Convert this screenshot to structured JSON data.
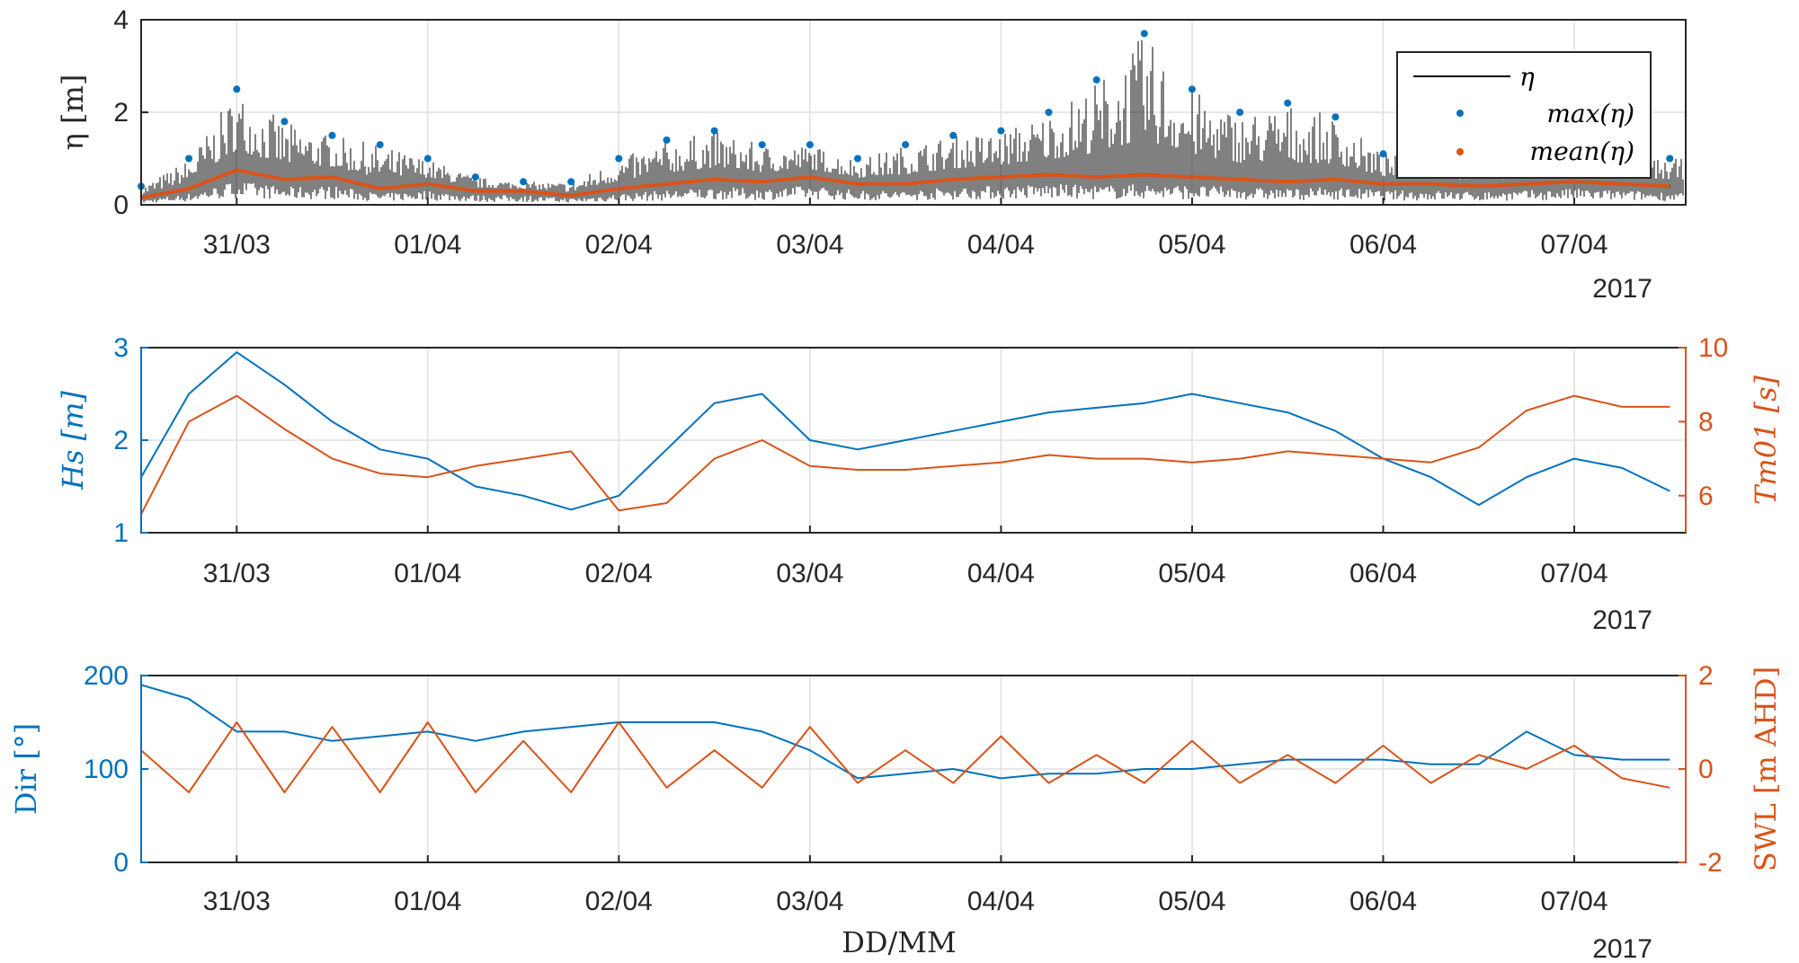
{
  "chart_data": [
    {
      "type": "line",
      "x_tick_labels": [
        "31/03",
        "01/04",
        "02/04",
        "03/04",
        "04/04",
        "05/04",
        "06/04",
        "07/04"
      ],
      "x_tick_dates": [
        "2017-03-31",
        "2017-04-01",
        "2017-04-02",
        "2017-04-03",
        "2017-04-04",
        "2017-04-05",
        "2017-04-06",
        "2017-04-07"
      ],
      "xlim": [
        "2017-03-30T12:00",
        "2017-04-07T14:00"
      ],
      "year_label": "2017",
      "ylabel": "η [m]",
      "ylim": [
        0,
        4
      ],
      "y_ticks": [
        "0",
        "2",
        "4"
      ],
      "grid": true,
      "legend_position": "top-right",
      "legend": [
        "η",
        "max(η)",
        "mean(η)"
      ],
      "colors": {
        "eta": "#000000",
        "max": "#0072BD",
        "mean": "#D95319"
      },
      "series": [
        {
          "name": "max(η)",
          "style": "points",
          "x": [
            "2017-03-30T12:00",
            "2017-03-30T18:00",
            "2017-03-31T00:00",
            "2017-03-31T06:00",
            "2017-03-31T12:00",
            "2017-03-31T18:00",
            "2017-04-01T00:00",
            "2017-04-01T06:00",
            "2017-04-01T12:00",
            "2017-04-01T18:00",
            "2017-04-02T00:00",
            "2017-04-02T06:00",
            "2017-04-02T12:00",
            "2017-04-02T18:00",
            "2017-04-03T00:00",
            "2017-04-03T06:00",
            "2017-04-03T12:00",
            "2017-04-03T18:00",
            "2017-04-04T00:00",
            "2017-04-04T06:00",
            "2017-04-04T12:00",
            "2017-04-04T18:00",
            "2017-04-05T00:00",
            "2017-04-05T06:00",
            "2017-04-05T12:00",
            "2017-04-05T18:00",
            "2017-04-06T00:00",
            "2017-04-06T06:00",
            "2017-04-06T12:00",
            "2017-04-06T18:00",
            "2017-04-07T00:00",
            "2017-04-07T06:00",
            "2017-04-07T12:00"
          ],
          "y": [
            0.4,
            1.0,
            2.5,
            1.8,
            1.5,
            1.3,
            1.0,
            0.6,
            0.5,
            0.5,
            1.0,
            1.4,
            1.6,
            1.3,
            1.3,
            1.0,
            1.3,
            1.5,
            1.6,
            2.0,
            2.7,
            3.7,
            2.5,
            2.0,
            2.2,
            1.9,
            1.1,
            1.0,
            0.9,
            1.0,
            1.0,
            1.0,
            1.0
          ]
        },
        {
          "name": "mean(η)",
          "x": [
            "2017-03-30T12:00",
            "2017-03-30T18:00",
            "2017-03-31T00:00",
            "2017-03-31T06:00",
            "2017-03-31T12:00",
            "2017-03-31T18:00",
            "2017-04-01T00:00",
            "2017-04-01T06:00",
            "2017-04-01T12:00",
            "2017-04-01T18:00",
            "2017-04-02T00:00",
            "2017-04-02T06:00",
            "2017-04-02T12:00",
            "2017-04-02T18:00",
            "2017-04-03T00:00",
            "2017-04-03T06:00",
            "2017-04-03T12:00",
            "2017-04-03T18:00",
            "2017-04-04T00:00",
            "2017-04-04T06:00",
            "2017-04-04T12:00",
            "2017-04-04T18:00",
            "2017-04-05T00:00",
            "2017-04-05T06:00",
            "2017-04-05T12:00",
            "2017-04-05T18:00",
            "2017-04-06T00:00",
            "2017-04-06T06:00",
            "2017-04-06T12:00",
            "2017-04-06T18:00",
            "2017-04-07T00:00",
            "2017-04-07T06:00",
            "2017-04-07T12:00"
          ],
          "y": [
            0.15,
            0.35,
            0.75,
            0.55,
            0.6,
            0.35,
            0.45,
            0.3,
            0.3,
            0.2,
            0.35,
            0.45,
            0.55,
            0.5,
            0.6,
            0.45,
            0.45,
            0.55,
            0.6,
            0.65,
            0.6,
            0.65,
            0.6,
            0.55,
            0.5,
            0.55,
            0.45,
            0.45,
            0.4,
            0.45,
            0.5,
            0.45,
            0.4
          ]
        }
      ]
    },
    {
      "type": "line",
      "x_tick_labels": [
        "31/03",
        "01/04",
        "02/04",
        "03/04",
        "04/04",
        "05/04",
        "06/04",
        "07/04"
      ],
      "year_label": "2017",
      "ylabel_left": "Hs [m]",
      "ylabel_right": "Tm01 [s]",
      "ylim_left": [
        1,
        3
      ],
      "ylim_right": [
        5,
        10
      ],
      "y_ticks_left": [
        "1",
        "2",
        "3"
      ],
      "y_ticks_right": [
        "6",
        "8",
        "10"
      ],
      "grid": true,
      "series": [
        {
          "name": "Hs",
          "axis": "left",
          "color": "#0072BD",
          "x": [
            "2017-03-30T12:00",
            "2017-03-30T18:00",
            "2017-03-31T00:00",
            "2017-03-31T06:00",
            "2017-03-31T12:00",
            "2017-03-31T18:00",
            "2017-04-01T00:00",
            "2017-04-01T06:00",
            "2017-04-01T12:00",
            "2017-04-01T18:00",
            "2017-04-02T00:00",
            "2017-04-02T06:00",
            "2017-04-02T12:00",
            "2017-04-02T18:00",
            "2017-04-03T00:00",
            "2017-04-03T06:00",
            "2017-04-03T12:00",
            "2017-04-03T18:00",
            "2017-04-04T00:00",
            "2017-04-04T06:00",
            "2017-04-04T12:00",
            "2017-04-04T18:00",
            "2017-04-05T00:00",
            "2017-04-05T06:00",
            "2017-04-05T12:00",
            "2017-04-05T18:00",
            "2017-04-06T00:00",
            "2017-04-06T06:00",
            "2017-04-06T12:00",
            "2017-04-06T18:00",
            "2017-04-07T00:00",
            "2017-04-07T06:00",
            "2017-04-07T12:00"
          ],
          "y": [
            1.6,
            2.5,
            2.95,
            2.6,
            2.2,
            1.9,
            1.8,
            1.5,
            1.4,
            1.25,
            1.4,
            1.9,
            2.4,
            2.5,
            2.0,
            1.9,
            2.0,
            2.1,
            2.2,
            2.3,
            2.35,
            2.4,
            2.5,
            2.4,
            2.3,
            2.1,
            1.8,
            1.6,
            1.3,
            1.6,
            1.8,
            1.7,
            1.45
          ]
        },
        {
          "name": "Tm01",
          "axis": "right",
          "color": "#D95319",
          "x": [
            "2017-03-30T12:00",
            "2017-03-30T18:00",
            "2017-03-31T00:00",
            "2017-03-31T06:00",
            "2017-03-31T12:00",
            "2017-03-31T18:00",
            "2017-04-01T00:00",
            "2017-04-01T06:00",
            "2017-04-01T12:00",
            "2017-04-01T18:00",
            "2017-04-02T00:00",
            "2017-04-02T06:00",
            "2017-04-02T12:00",
            "2017-04-02T18:00",
            "2017-04-03T00:00",
            "2017-04-03T06:00",
            "2017-04-03T12:00",
            "2017-04-03T18:00",
            "2017-04-04T00:00",
            "2017-04-04T06:00",
            "2017-04-04T12:00",
            "2017-04-04T18:00",
            "2017-04-05T00:00",
            "2017-04-05T06:00",
            "2017-04-05T12:00",
            "2017-04-05T18:00",
            "2017-04-06T00:00",
            "2017-04-06T06:00",
            "2017-04-06T12:00",
            "2017-04-06T18:00",
            "2017-04-07T00:00",
            "2017-04-07T06:00",
            "2017-04-07T12:00"
          ],
          "y": [
            5.5,
            8.0,
            8.7,
            7.8,
            7.0,
            6.6,
            6.5,
            6.8,
            7.0,
            7.2,
            5.6,
            5.8,
            7.0,
            7.5,
            6.8,
            6.7,
            6.7,
            6.8,
            6.9,
            7.1,
            7.0,
            7.0,
            6.9,
            7.0,
            7.2,
            7.1,
            7.0,
            6.9,
            7.3,
            8.3,
            8.7,
            8.4,
            8.4
          ]
        }
      ]
    },
    {
      "type": "line",
      "x_tick_labels": [
        "31/03",
        "01/04",
        "02/04",
        "03/04",
        "04/04",
        "05/04",
        "06/04",
        "07/04"
      ],
      "year_label": "2017",
      "xlabel": "DD/MM",
      "ylabel_left": "Dir [°]",
      "ylabel_right": "SWL [m AHD]",
      "ylim_left": [
        0,
        200
      ],
      "ylim_right": [
        -2,
        2
      ],
      "y_ticks_left": [
        "0",
        "100",
        "200"
      ],
      "y_ticks_right": [
        "-2",
        "0",
        "2"
      ],
      "grid": true,
      "series": [
        {
          "name": "Dir",
          "axis": "left",
          "color": "#0072BD",
          "x": [
            "2017-03-30T12:00",
            "2017-03-30T18:00",
            "2017-03-31T00:00",
            "2017-03-31T06:00",
            "2017-03-31T12:00",
            "2017-03-31T18:00",
            "2017-04-01T00:00",
            "2017-04-01T06:00",
            "2017-04-01T12:00",
            "2017-04-01T18:00",
            "2017-04-02T00:00",
            "2017-04-02T06:00",
            "2017-04-02T12:00",
            "2017-04-02T18:00",
            "2017-04-03T00:00",
            "2017-04-03T06:00",
            "2017-04-03T12:00",
            "2017-04-03T18:00",
            "2017-04-04T00:00",
            "2017-04-04T06:00",
            "2017-04-04T12:00",
            "2017-04-04T18:00",
            "2017-04-05T00:00",
            "2017-04-05T06:00",
            "2017-04-05T12:00",
            "2017-04-05T18:00",
            "2017-04-06T00:00",
            "2017-04-06T06:00",
            "2017-04-06T12:00",
            "2017-04-06T18:00",
            "2017-04-07T00:00",
            "2017-04-07T06:00",
            "2017-04-07T12:00"
          ],
          "y": [
            190,
            175,
            140,
            140,
            130,
            135,
            140,
            130,
            140,
            145,
            150,
            150,
            150,
            140,
            120,
            90,
            95,
            100,
            90,
            95,
            95,
            100,
            100,
            105,
            110,
            110,
            110,
            105,
            105,
            140,
            115,
            110,
            110
          ]
        },
        {
          "name": "SWL",
          "axis": "right",
          "color": "#D95319",
          "x": [
            "2017-03-30T12:00",
            "2017-03-30T18:00",
            "2017-03-31T00:00",
            "2017-03-31T06:00",
            "2017-03-31T12:00",
            "2017-03-31T18:00",
            "2017-04-01T00:00",
            "2017-04-01T06:00",
            "2017-04-01T12:00",
            "2017-04-01T18:00",
            "2017-04-02T00:00",
            "2017-04-02T06:00",
            "2017-04-02T12:00",
            "2017-04-02T18:00",
            "2017-04-03T00:00",
            "2017-04-03T06:00",
            "2017-04-03T12:00",
            "2017-04-03T18:00",
            "2017-04-04T00:00",
            "2017-04-04T06:00",
            "2017-04-04T12:00",
            "2017-04-04T18:00",
            "2017-04-05T00:00",
            "2017-04-05T06:00",
            "2017-04-05T12:00",
            "2017-04-05T18:00",
            "2017-04-06T00:00",
            "2017-04-06T06:00",
            "2017-04-06T12:00",
            "2017-04-06T18:00",
            "2017-04-07T00:00",
            "2017-04-07T06:00",
            "2017-04-07T12:00"
          ],
          "y": [
            0.4,
            -0.5,
            1.0,
            -0.5,
            0.9,
            -0.5,
            1.0,
            -0.5,
            0.6,
            -0.5,
            1.0,
            -0.4,
            0.4,
            -0.4,
            0.9,
            -0.3,
            0.4,
            -0.3,
            0.7,
            -0.3,
            0.3,
            -0.3,
            0.6,
            -0.3,
            0.3,
            -0.3,
            0.5,
            -0.3,
            0.3,
            0.0,
            0.5,
            -0.2,
            -0.4
          ]
        }
      ]
    }
  ]
}
